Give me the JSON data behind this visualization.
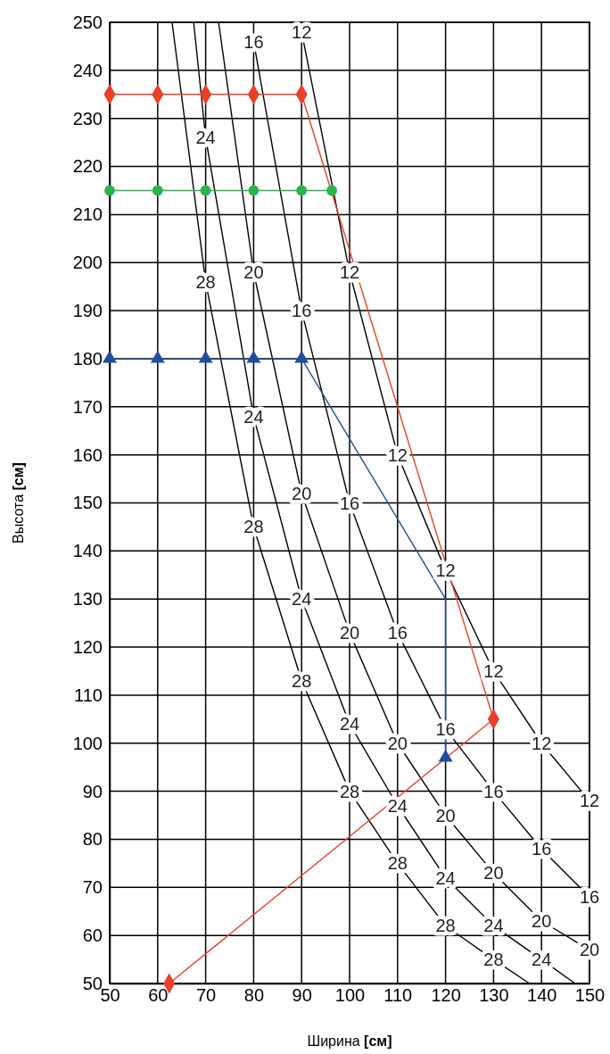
{
  "chart_data": {
    "type": "line",
    "xlabel": "Ширина [см]",
    "ylabel": "Высота [см]",
    "xlim": [
      50,
      150
    ],
    "xticks": [
      50,
      60,
      70,
      80,
      90,
      100,
      110,
      120,
      130,
      140,
      150
    ],
    "ylim": [
      50,
      250
    ],
    "yticks": [
      50,
      60,
      70,
      80,
      90,
      100,
      110,
      120,
      130,
      140,
      150,
      160,
      170,
      180,
      190,
      200,
      210,
      220,
      230,
      240,
      250
    ],
    "grid": true,
    "line_style": "solid",
    "series": [
      {
        "color": "#000000",
        "marker": "none",
        "x": [
          90,
          100,
          110,
          120,
          130,
          140,
          150
        ],
        "values": [
          248,
          198,
          160,
          136,
          115,
          100,
          88
        ]
      },
      {
        "color": "#000000",
        "marker": "none",
        "x": [
          80,
          90,
          100,
          110,
          120,
          130,
          140,
          150
        ],
        "values": [
          246,
          190,
          150,
          123,
          103,
          90,
          78,
          68
        ]
      },
      {
        "color": "#000000",
        "marker": "none",
        "x": [
          72.7,
          80,
          90,
          100,
          110,
          120,
          130,
          140,
          150
        ],
        "values": [
          250,
          198,
          152,
          123,
          100,
          85,
          73,
          63,
          57
        ]
      },
      {
        "color": "#000000",
        "marker": "none",
        "x": [
          67.5,
          70,
          80,
          90,
          100,
          110,
          120,
          130,
          140,
          147
        ],
        "values": [
          250,
          226,
          168,
          130,
          104,
          87,
          72,
          62,
          55,
          50
        ]
      },
      {
        "color": "#000000",
        "marker": "none",
        "x": [
          63,
          70,
          80,
          90,
          100,
          110,
          120,
          130,
          137.5
        ],
        "values": [
          250,
          196,
          145,
          113,
          90,
          75,
          62,
          55,
          50
        ]
      },
      {
        "color": "#e8402a",
        "marker": "diamond",
        "x": [
          50,
          60,
          70,
          80,
          90,
          130,
          62.4
        ],
        "values": [
          235,
          235,
          235,
          235,
          235,
          105,
          50
        ]
      },
      {
        "color": "#2db34a",
        "marker": "circle",
        "x": [
          50,
          60,
          70,
          80,
          90,
          96.3
        ],
        "values": [
          215,
          215,
          215,
          215,
          215,
          215
        ]
      },
      {
        "color": "#1f4e9c",
        "marker": "none",
        "x": [
          50,
          60,
          70,
          80,
          90,
          120,
          120
        ],
        "values": [
          180,
          180,
          180,
          180,
          180,
          130,
          97
        ]
      },
      {
        "type": "scatter",
        "color": "#1f4e9c",
        "marker": "triangle",
        "x": [
          50,
          60,
          70,
          80,
          90,
          120
        ],
        "values": [
          180,
          180,
          180,
          180,
          180,
          97
        ]
      }
    ],
    "annotations": [
      {
        "text": "12",
        "x": 90,
        "y": 248
      },
      {
        "text": "12",
        "x": 100,
        "y": 198
      },
      {
        "text": "12",
        "x": 110,
        "y": 160
      },
      {
        "text": "12",
        "x": 120,
        "y": 136
      },
      {
        "text": "12",
        "x": 130,
        "y": 115
      },
      {
        "text": "12",
        "x": 140,
        "y": 100
      },
      {
        "text": "12",
        "x": 150,
        "y": 88
      },
      {
        "text": "16",
        "x": 80,
        "y": 246
      },
      {
        "text": "16",
        "x": 90,
        "y": 190
      },
      {
        "text": "16",
        "x": 100,
        "y": 150
      },
      {
        "text": "16",
        "x": 110,
        "y": 123
      },
      {
        "text": "16",
        "x": 120,
        "y": 103
      },
      {
        "text": "16",
        "x": 130,
        "y": 90
      },
      {
        "text": "16",
        "x": 140,
        "y": 78
      },
      {
        "text": "16",
        "x": 150,
        "y": 68
      },
      {
        "text": "20",
        "x": 80,
        "y": 198
      },
      {
        "text": "20",
        "x": 90,
        "y": 152
      },
      {
        "text": "20",
        "x": 100,
        "y": 123
      },
      {
        "text": "20",
        "x": 110,
        "y": 100
      },
      {
        "text": "20",
        "x": 120,
        "y": 85
      },
      {
        "text": "20",
        "x": 130,
        "y": 73
      },
      {
        "text": "20",
        "x": 140,
        "y": 63
      },
      {
        "text": "20",
        "x": 150,
        "y": 57
      },
      {
        "text": "24",
        "x": 70,
        "y": 226
      },
      {
        "text": "24",
        "x": 80,
        "y": 168
      },
      {
        "text": "24",
        "x": 90,
        "y": 130
      },
      {
        "text": "24",
        "x": 100,
        "y": 104
      },
      {
        "text": "24",
        "x": 110,
        "y": 87
      },
      {
        "text": "24",
        "x": 120,
        "y": 72
      },
      {
        "text": "24",
        "x": 130,
        "y": 62
      },
      {
        "text": "24",
        "x": 140,
        "y": 55
      },
      {
        "text": "28",
        "x": 70,
        "y": 196
      },
      {
        "text": "28",
        "x": 80,
        "y": 145
      },
      {
        "text": "28",
        "x": 90,
        "y": 113
      },
      {
        "text": "28",
        "x": 100,
        "y": 90
      },
      {
        "text": "28",
        "x": 110,
        "y": 75
      },
      {
        "text": "28",
        "x": 120,
        "y": 62
      },
      {
        "text": "28",
        "x": 130,
        "y": 55
      }
    ]
  }
}
